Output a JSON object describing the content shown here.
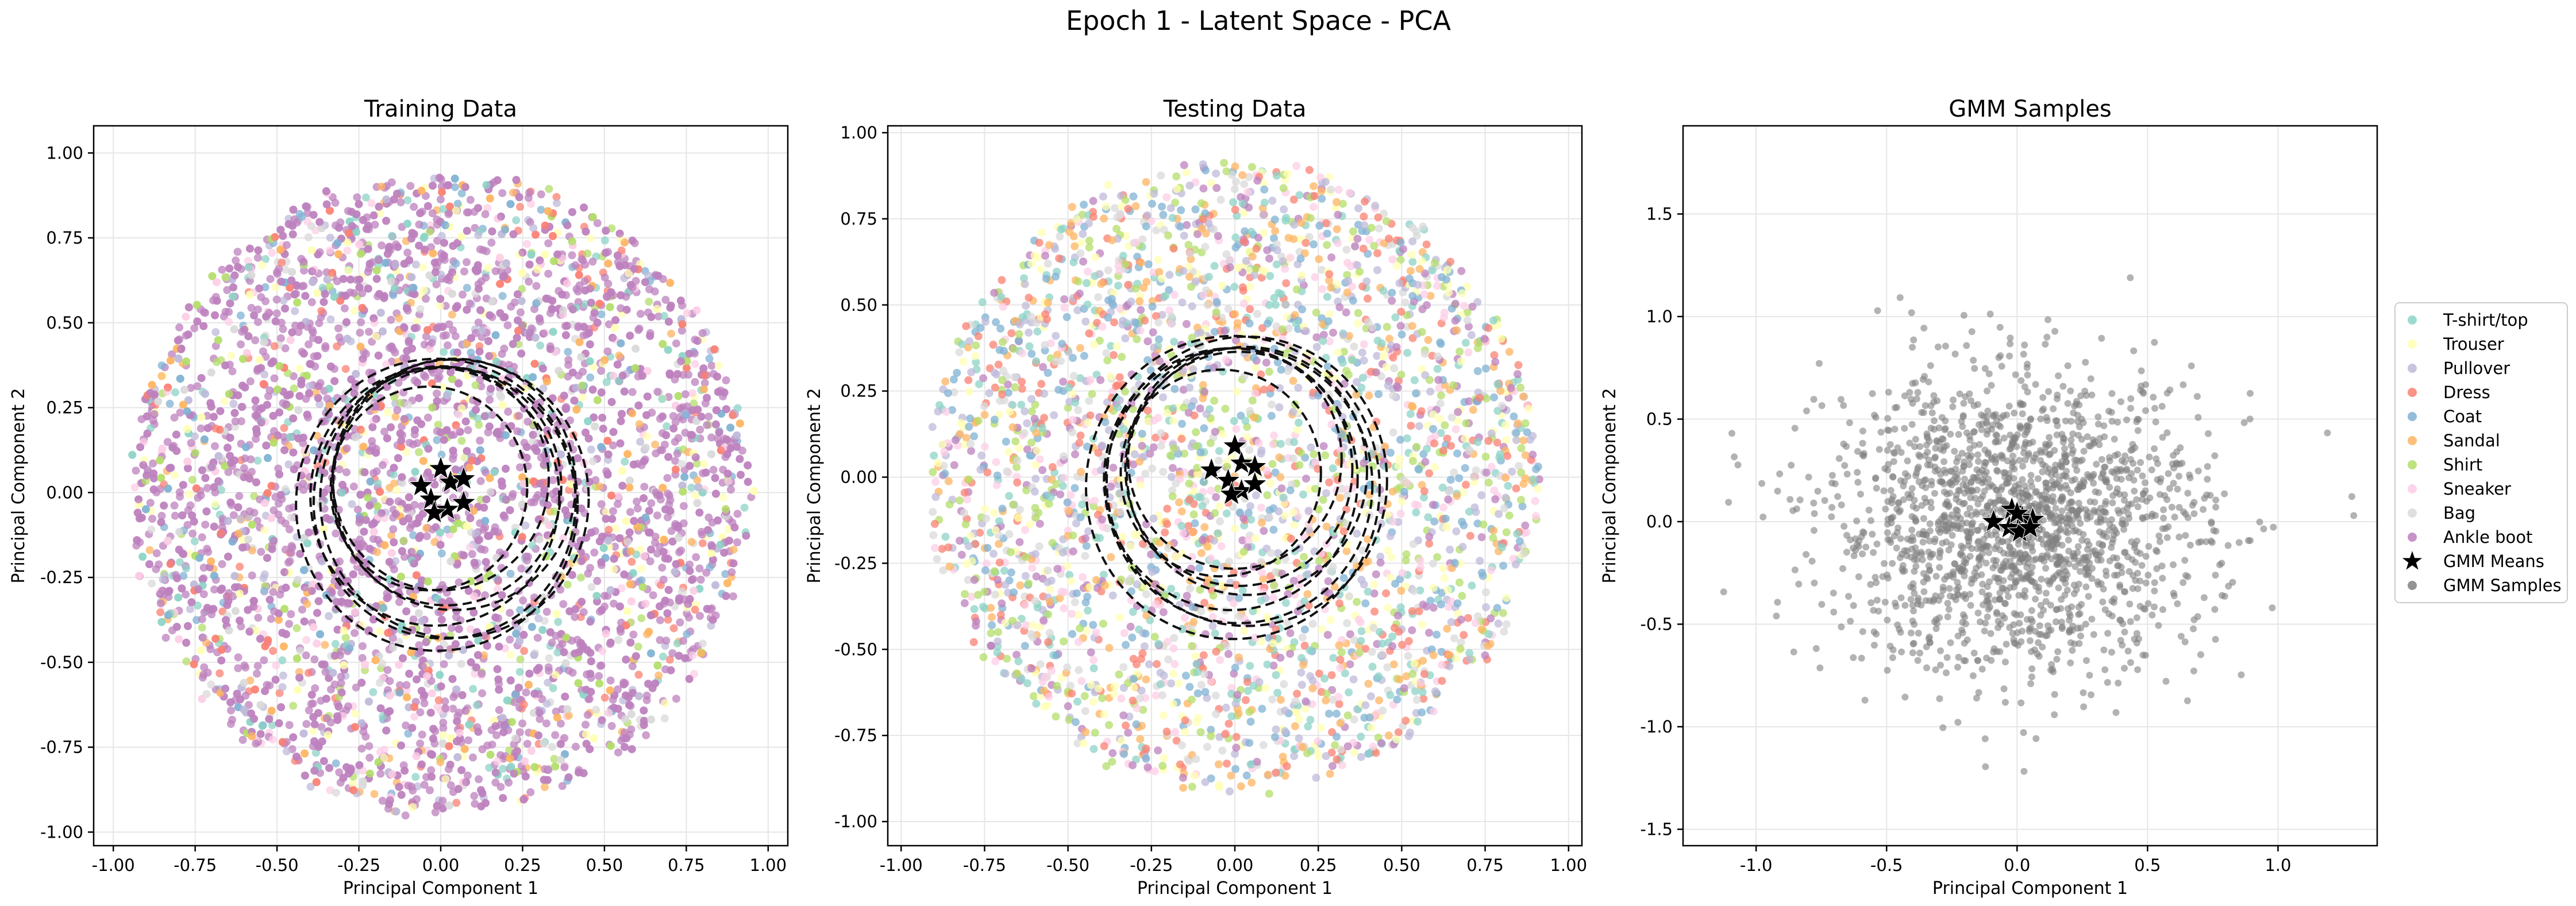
{
  "figure": {
    "suptitle": "Epoch 1 - Latent Space - PCA"
  },
  "chart_data": [
    {
      "type": "scatter",
      "title": "Training Data",
      "xlabel": "Principal Component 1",
      "ylabel": "Principal Component 2",
      "xlim": [
        -1.06,
        1.06
      ],
      "ylim": [
        -1.04,
        1.08
      ],
      "xticks": [
        "-1.00",
        "-0.75",
        "-0.50",
        "-0.25",
        "0.00",
        "0.25",
        "0.50",
        "0.75",
        "1.00"
      ],
      "yticks": [
        "-1.00",
        "-0.75",
        "-0.50",
        "-0.25",
        "0.00",
        "0.25",
        "0.50",
        "0.75",
        "1.00"
      ],
      "grid": true,
      "distribution": {
        "shape": "disc",
        "radius": 0.96,
        "dominant_class": "Ankle boot"
      },
      "gmm_means": [
        [
          -0.06,
          0.02
        ],
        [
          0.0,
          0.07
        ],
        [
          0.03,
          0.03
        ],
        [
          0.07,
          0.04
        ],
        [
          -0.03,
          -0.02
        ],
        [
          0.02,
          -0.05
        ],
        [
          0.07,
          -0.03
        ],
        [
          -0.02,
          -0.06
        ]
      ],
      "gmm_ellipse_radii": [
        0.3,
        0.33,
        0.35,
        0.37,
        0.38,
        0.4,
        0.41,
        0.43
      ]
    },
    {
      "type": "scatter",
      "title": "Testing Data",
      "xlabel": "Principal Component 1",
      "ylabel": "Principal Component 2",
      "xlim": [
        -1.04,
        1.04
      ],
      "ylim": [
        -1.07,
        1.02
      ],
      "xticks": [
        "-1.00",
        "-0.75",
        "-0.50",
        "-0.25",
        "0.00",
        "0.25",
        "0.50",
        "0.75",
        "1.00"
      ],
      "yticks": [
        "-1.00",
        "-0.75",
        "-0.50",
        "-0.25",
        "0.00",
        "0.25",
        "0.50",
        "0.75",
        "1.00"
      ],
      "grid": true,
      "distribution": {
        "shape": "disc",
        "radius": 0.93,
        "dominant_class": "none"
      },
      "gmm_means": [
        [
          -0.07,
          0.02
        ],
        [
          0.0,
          0.09
        ],
        [
          0.02,
          0.04
        ],
        [
          0.06,
          0.03
        ],
        [
          -0.02,
          -0.01
        ],
        [
          0.02,
          -0.04
        ],
        [
          0.06,
          -0.02
        ],
        [
          -0.01,
          -0.05
        ]
      ],
      "gmm_ellipse_radii": [
        0.3,
        0.32,
        0.34,
        0.36,
        0.38,
        0.4,
        0.42,
        0.44
      ]
    },
    {
      "type": "scatter",
      "title": "GMM Samples",
      "xlabel": "Principal Component 1",
      "ylabel": "Principal Component 2",
      "xlim": [
        -1.28,
        1.38
      ],
      "ylim": [
        -1.58,
        1.93
      ],
      "xticks": [
        "-1.0",
        "-0.5",
        "0.0",
        "0.5",
        "1.0"
      ],
      "yticks": [
        "-1.5",
        "-1.0",
        "-0.5",
        "0.0",
        "0.5",
        "1.0",
        "1.5"
      ],
      "grid": true,
      "distribution": {
        "shape": "gaussian",
        "sigma": 0.36,
        "n_samples": 1800
      },
      "gmm_means": [
        [
          -0.09,
          0.0
        ],
        [
          -0.02,
          0.06
        ],
        [
          0.02,
          0.02
        ],
        [
          0.06,
          0.01
        ],
        [
          -0.03,
          -0.03
        ],
        [
          0.01,
          -0.05
        ],
        [
          0.05,
          -0.03
        ],
        [
          0.0,
          0.04
        ]
      ]
    }
  ],
  "legend": {
    "placement": "right of GMM Samples",
    "items": [
      {
        "label": "T-shirt/top",
        "color": "#8dd3c7",
        "marker": "dot"
      },
      {
        "label": "Trouser",
        "color": "#ffffb3",
        "marker": "dot"
      },
      {
        "label": "Pullover",
        "color": "#bebada",
        "marker": "dot"
      },
      {
        "label": "Dress",
        "color": "#fb8072",
        "marker": "dot"
      },
      {
        "label": "Coat",
        "color": "#80b1d3",
        "marker": "dot"
      },
      {
        "label": "Sandal",
        "color": "#fdb462",
        "marker": "dot"
      },
      {
        "label": "Shirt",
        "color": "#b3de69",
        "marker": "dot"
      },
      {
        "label": "Sneaker",
        "color": "#fccde5",
        "marker": "dot"
      },
      {
        "label": "Bag",
        "color": "#d9d9d9",
        "marker": "dot"
      },
      {
        "label": "Ankle boot",
        "color": "#bc80bd",
        "marker": "dot"
      },
      {
        "label": "GMM Means",
        "color": "#000000",
        "marker": "star"
      },
      {
        "label": "GMM Samples",
        "color": "#808080",
        "marker": "dot"
      }
    ]
  }
}
